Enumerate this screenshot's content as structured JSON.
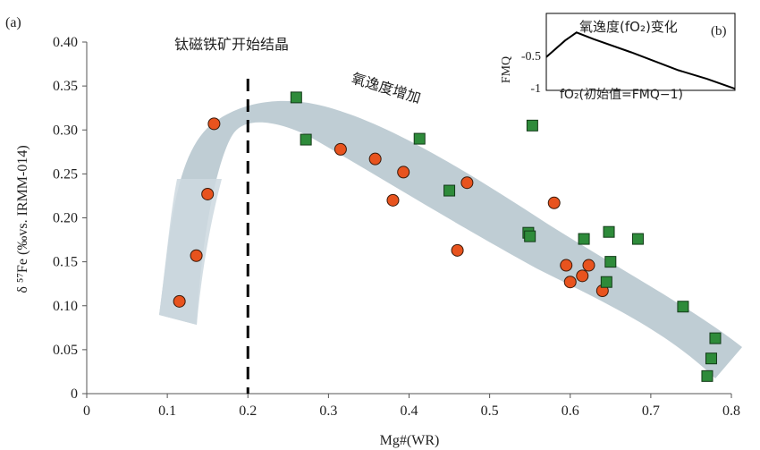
{
  "chart_data": {
    "type": "scatter",
    "panel_a_label": "(a)",
    "xlabel": "Mg#(WR)",
    "ylabel": "δ ⁵⁷Fe (‰vs. IRMM-014)",
    "xlim": [
      0,
      0.8
    ],
    "ylim": [
      0,
      0.4
    ],
    "x_ticks": [
      "0",
      "0.1",
      "0.2",
      "0.3",
      "0.4",
      "0.5",
      "0.6",
      "0.7",
      "0.8"
    ],
    "y_ticks": [
      "0",
      "0.05",
      "0.10",
      "0.15",
      "0.20",
      "0.25",
      "0.30",
      "0.35",
      "0.40"
    ],
    "grid": false,
    "annotations": {
      "magnetite_line_x": 0.2,
      "magnetite_label": "钛磁铁矿开始结晶",
      "trend_label": "氧逸度增加"
    },
    "series": [
      {
        "marker": "circle",
        "color": "#e8531e",
        "points": [
          [
            0.115,
            0.105
          ],
          [
            0.136,
            0.157
          ],
          [
            0.15,
            0.227
          ],
          [
            0.158,
            0.307
          ],
          [
            0.315,
            0.278
          ],
          [
            0.358,
            0.267
          ],
          [
            0.38,
            0.22
          ],
          [
            0.393,
            0.252
          ],
          [
            0.46,
            0.163
          ],
          [
            0.472,
            0.24
          ],
          [
            0.58,
            0.217
          ],
          [
            0.595,
            0.146
          ],
          [
            0.6,
            0.127
          ],
          [
            0.615,
            0.134
          ],
          [
            0.623,
            0.146
          ],
          [
            0.64,
            0.117
          ]
        ]
      },
      {
        "marker": "square",
        "color": "#2e8b3a",
        "points": [
          [
            0.26,
            0.337
          ],
          [
            0.272,
            0.289
          ],
          [
            0.413,
            0.29
          ],
          [
            0.45,
            0.231
          ],
          [
            0.548,
            0.183
          ],
          [
            0.55,
            0.179
          ],
          [
            0.553,
            0.305
          ],
          [
            0.617,
            0.176
          ],
          [
            0.645,
            0.127
          ],
          [
            0.648,
            0.184
          ],
          [
            0.65,
            0.15
          ],
          [
            0.684,
            0.176
          ],
          [
            0.74,
            0.099
          ],
          [
            0.77,
            0.02
          ],
          [
            0.775,
            0.04
          ],
          [
            0.78,
            0.063
          ]
        ]
      }
    ],
    "inset": {
      "panel_label": "(b)",
      "title": "氧逸度(fO₂)变化",
      "ylabel": "FMQ",
      "y_ticks": [
        "-0.5",
        "-1"
      ],
      "curve_note": "fO₂(初始值=FMQ−1)",
      "curve": [
        [
          0.0,
          -0.55
        ],
        [
          0.1,
          -0.3
        ],
        [
          0.16,
          -0.18
        ],
        [
          0.25,
          -0.28
        ],
        [
          0.45,
          -0.48
        ],
        [
          0.7,
          -0.75
        ],
        [
          0.85,
          -0.88
        ],
        [
          1.0,
          -1.03
        ]
      ]
    }
  }
}
